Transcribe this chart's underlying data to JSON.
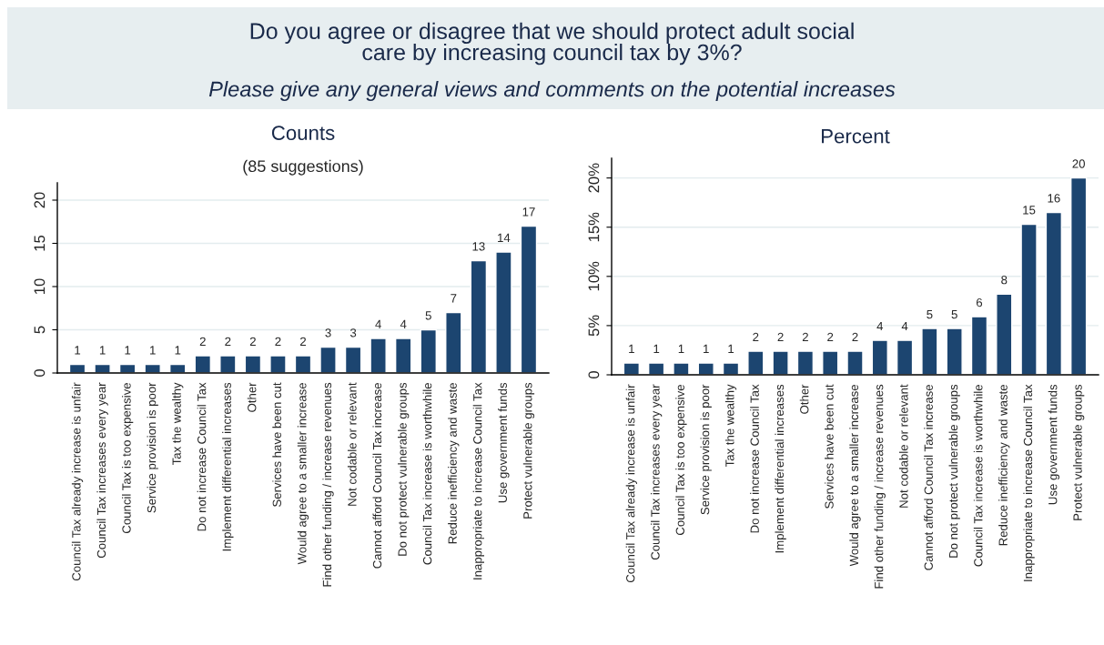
{
  "chart_data": [
    {
      "type": "bar",
      "title": "Counts",
      "subtitle": "(85 suggestions)",
      "annotations": [
        "Do you agree or disagree that we should protect adult social\ncare by increasing council tax by 3%?",
        "Please give any general views and comments on the potential increases"
      ],
      "categories": [
        "Council Tax already increase is unfair",
        "Council Tax increases every year",
        "Council Tax is too expensive",
        "Service provision is poor",
        "Tax the wealthy",
        "Do not increase Council Tax",
        "Implement differential increases",
        "Other",
        "Services have been cut",
        "Would agree to a smaller increase",
        "Find other funding / increase revenues",
        "Not codable or relevant",
        "Cannot afford Council Tax increase",
        "Do not protect vulnerable groups",
        "Council Tax increase is worthwhile",
        "Reduce inefficiency and waste",
        "Inappropriate to increase Council Tax",
        "Use government funds",
        "Protect vulnerable groups"
      ],
      "values": [
        1,
        1,
        1,
        1,
        1,
        2,
        2,
        2,
        2,
        2,
        3,
        3,
        4,
        4,
        5,
        7,
        13,
        14,
        17
      ],
      "color": "#1c4570",
      "ylim": [
        0,
        22
      ],
      "yticks": [
        0,
        5,
        10,
        15,
        20
      ],
      "grid": "y",
      "data_labels": true
    },
    {
      "type": "bar",
      "title": "Percent",
      "categories": [
        "Council Tax already increase is unfair",
        "Council Tax increases every year",
        "Council Tax is too expensive",
        "Service provision is poor",
        "Tax the wealthy",
        "Do not increase Council Tax",
        "Implement differential increases",
        "Other",
        "Services have been cut",
        "Would agree to a smaller increase",
        "Find other funding / increase revenues",
        "Not codable or relevant",
        "Cannot afford Council Tax increase",
        "Do not protect vulnerable groups",
        "Council Tax increase is worthwhile",
        "Reduce inefficiency and waste",
        "Inappropriate to increase Council Tax",
        "Use government funds",
        "Protect vulnerable groups"
      ],
      "values": [
        1.2,
        1.2,
        1.2,
        1.2,
        1.2,
        2.4,
        2.4,
        2.4,
        2.4,
        2.4,
        3.5,
        3.5,
        4.7,
        4.7,
        5.9,
        8.2,
        15.3,
        16.5,
        20.0
      ],
      "value_labels": [
        "1",
        "1",
        "1",
        "1",
        "1",
        "2",
        "2",
        "2",
        "2",
        "2",
        "4",
        "4",
        "5",
        "5",
        "6",
        "8",
        "15",
        "16",
        "20"
      ],
      "color": "#1c4570",
      "ylim": [
        0,
        22
      ],
      "yticks": [
        0,
        {
          "value": 5,
          "label": "5%"
        },
        {
          "value": 10,
          "label": "10%"
        },
        {
          "value": 15,
          "label": "15%"
        },
        {
          "value": 20,
          "label": "20%"
        }
      ],
      "grid": "y"
    }
  ]
}
